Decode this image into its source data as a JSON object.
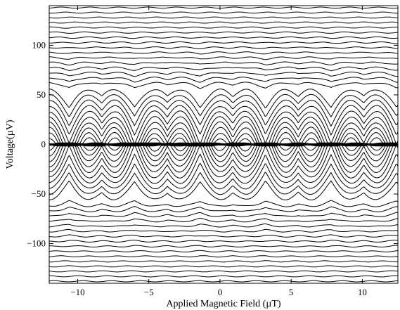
{
  "chart_data": {
    "type": "line",
    "title": "",
    "xlabel": "Applied Magnetic Field (µT)",
    "ylabel": "Voltage(µV)",
    "xlim": [
      -12,
      12.5
    ],
    "ylim": [
      -140,
      140
    ],
    "x_ticks": [
      -10,
      -5,
      0,
      5,
      10
    ],
    "y_ticks": [
      -100,
      -50,
      0,
      50,
      100
    ],
    "x_tick_labels": [
      "−10",
      "−5",
      "0",
      "5",
      "10"
    ],
    "y_tick_labels": [
      "−100",
      "−50",
      "0",
      "50",
      "100"
    ],
    "grid": false,
    "legend": "none",
    "line_color": "#000000",
    "description": "",
    "series_levels": [
      -138,
      -133,
      -128,
      -123,
      -118,
      -113,
      -108,
      -103,
      -98,
      -93,
      -88,
      -83,
      -78,
      -73,
      -68,
      -63,
      -58,
      -53,
      -48,
      -43,
      -38,
      -33,
      -28,
      -23,
      -18,
      -13,
      -8,
      -4,
      4,
      8,
      13,
      18,
      23,
      28,
      33,
      38,
      43,
      48,
      53,
      58,
      63,
      68,
      73,
      78,
      83,
      88,
      93,
      98,
      103,
      108,
      113,
      118,
      123,
      128,
      133,
      138
    ],
    "envelope_period": 4.6,
    "envelope_phase": -3.7,
    "fine_period": 2.3,
    "fine_phase": -2.55,
    "max_modulation": 55
  }
}
